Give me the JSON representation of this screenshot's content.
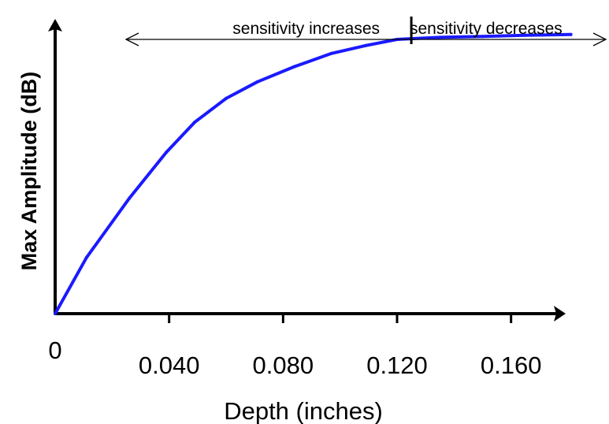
{
  "chart_data": {
    "type": "line",
    "xlabel": "Depth (inches)",
    "ylabel": "Max Amplitude (dB)",
    "x_ticks": [
      "0",
      "0.040",
      "0.080",
      "0.120",
      "0.160"
    ],
    "x_tick_values": [
      0,
      0.04,
      0.08,
      0.12,
      0.16
    ],
    "xlim": [
      0,
      0.18
    ],
    "ylim": [
      0,
      1
    ],
    "y_ticks_shown": false,
    "grid": false,
    "legend": "none",
    "series": [
      {
        "color": "#1a1aff",
        "x": [
          0,
          0.011,
          0.026,
          0.039,
          0.049,
          0.06,
          0.071,
          0.084,
          0.097,
          0.109,
          0.12,
          0.135,
          0.15,
          0.165,
          0.181
        ],
        "y": [
          0,
          0.192,
          0.394,
          0.552,
          0.655,
          0.736,
          0.793,
          0.845,
          0.89,
          0.917,
          0.938,
          0.945,
          0.948,
          0.952,
          0.955
        ]
      }
    ],
    "annotations": {
      "left_label": "sensitivity increases",
      "right_label": "sensitivity decreases",
      "divider_x": 0.125
    }
  }
}
